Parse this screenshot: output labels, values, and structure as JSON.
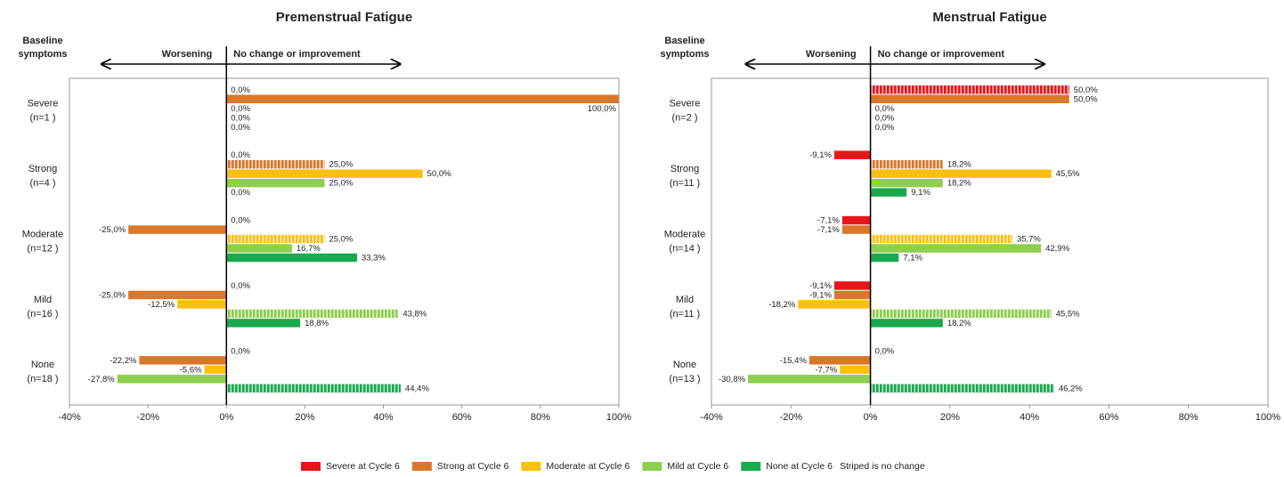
{
  "legend_note": "Striped is no change",
  "chart_data": [
    {
      "type": "bar",
      "title": "Premenstrual Fatigue",
      "y_label": [
        "Baseline",
        "symptoms"
      ],
      "left_label": "Worsening",
      "right_label": "No change or improvement",
      "categories": [
        {
          "name": "Severe",
          "n": "(n=1 )"
        },
        {
          "name": "Strong",
          "n": "(n=4 )"
        },
        {
          "name": "Moderate",
          "n": "(n=12 )"
        },
        {
          "name": "Mild",
          "n": "(n=16 )"
        },
        {
          "name": "None",
          "n": "(n=18 )"
        }
      ],
      "series": [
        {
          "name": "Severe at Cycle 6",
          "color": "#e8141c",
          "values": [
            0,
            0,
            0,
            0,
            0
          ],
          "value_labels": [
            "0,0%",
            "0,0%",
            "0,0%",
            "0,0%",
            "0,0%"
          ]
        },
        {
          "name": "Strong at Cycle 6",
          "color": "#d9772b",
          "values": [
            100,
            25,
            -25,
            -25,
            -22.2
          ],
          "value_labels": [
            "100,0%",
            "25,0%",
            "-25,0%",
            "-25,0%",
            "-22,2%"
          ]
        },
        {
          "name": "Moderate at Cycle 6",
          "color": "#f9c011",
          "values": [
            0,
            50,
            25,
            -12.5,
            -5.6
          ],
          "value_labels": [
            "0,0%",
            "50,0%",
            "25,0%",
            "-12,5%",
            "-5,6%"
          ]
        },
        {
          "name": "Mild at Cycle 6",
          "color": "#8fce4f",
          "values": [
            0,
            25,
            16.7,
            43.8,
            -27.8
          ],
          "value_labels": [
            "0,0%",
            "25,0%",
            "16,7%",
            "43,8%",
            "-27,8%"
          ]
        },
        {
          "name": "None at Cycle 6",
          "color": "#1aa94e",
          "values": [
            0,
            0,
            33.3,
            18.8,
            44.4
          ],
          "value_labels": [
            "0,0%",
            "0,0%",
            "33,3%",
            "18,8%",
            "44,4%"
          ]
        }
      ],
      "xlim": [
        -40,
        100
      ],
      "xticks": [
        {
          "value": -40,
          "label": "-40%"
        },
        {
          "value": -20,
          "label": "-20%"
        },
        {
          "value": 0,
          "label": "0%"
        },
        {
          "value": 20,
          "label": "20%"
        },
        {
          "value": 40,
          "label": "40%"
        },
        {
          "value": 60,
          "label": "60%"
        },
        {
          "value": 80,
          "label": "80%"
        },
        {
          "value": 100,
          "label": "100%"
        }
      ]
    },
    {
      "type": "bar",
      "title": "Menstrual Fatigue",
      "y_label": [
        "Baseline",
        "symptoms"
      ],
      "left_label": "Worsening",
      "right_label": "No change or improvement",
      "categories": [
        {
          "name": "Severe",
          "n": "(n=2 )"
        },
        {
          "name": "Strong",
          "n": "(n=11 )"
        },
        {
          "name": "Moderate",
          "n": "(n=14 )"
        },
        {
          "name": "Mild",
          "n": "(n=11 )"
        },
        {
          "name": "None",
          "n": "(n=13 )"
        }
      ],
      "series": [
        {
          "name": "Severe at Cycle 6",
          "color": "#e8141c",
          "values": [
            50,
            -9.1,
            -7.1,
            -9.1,
            0
          ],
          "value_labels": [
            "50,0%",
            "-9,1%",
            "-7,1%",
            "-9,1%",
            "0,0%"
          ]
        },
        {
          "name": "Strong at Cycle 6",
          "color": "#d9772b",
          "values": [
            50,
            18.2,
            -7.1,
            -9.1,
            -15.4
          ],
          "value_labels": [
            "50,0%",
            "18,2%",
            "-7,1%",
            "-9,1%",
            "-15,4%"
          ]
        },
        {
          "name": "Moderate at Cycle 6",
          "color": "#f9c011",
          "values": [
            0,
            45.5,
            35.7,
            -18.2,
            -7.7
          ],
          "value_labels": [
            "0,0%",
            "45,5%",
            "35,7%",
            "-18,2%",
            "-7,7%"
          ]
        },
        {
          "name": "Mild at Cycle 6",
          "color": "#8fce4f",
          "values": [
            0,
            18.2,
            42.9,
            45.5,
            -30.8
          ],
          "value_labels": [
            "0,0%",
            "18,2%",
            "42,9%",
            "45,5%",
            "-30,8%"
          ]
        },
        {
          "name": "None at Cycle 6",
          "color": "#1aa94e",
          "values": [
            0,
            9.1,
            7.1,
            18.2,
            46.2
          ],
          "value_labels": [
            "0,0%",
            "9,1%",
            "7,1%",
            "18,2%",
            "46,2%"
          ]
        }
      ],
      "xlim": [
        -40,
        100
      ],
      "xticks": [
        {
          "value": -40,
          "label": "-40%"
        },
        {
          "value": -20,
          "label": "-20%"
        },
        {
          "value": 0,
          "label": "0%"
        },
        {
          "value": 20,
          "label": "20%"
        },
        {
          "value": 40,
          "label": "40%"
        },
        {
          "value": 60,
          "label": "60%"
        },
        {
          "value": 80,
          "label": "80%"
        },
        {
          "value": 100,
          "label": "100%"
        }
      ]
    }
  ]
}
